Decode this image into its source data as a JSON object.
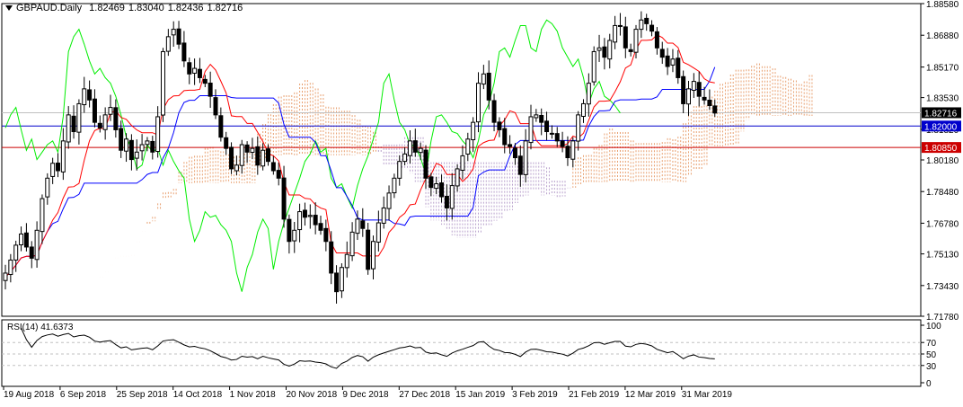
{
  "chart": {
    "symbol": "GBPAUD.",
    "timeframe": "Daily",
    "ohlc": [
      "1.82469",
      "1.83040",
      "1.82436",
      "1.82716"
    ]
  },
  "rsi_label": "RSI(14) 41.6373",
  "colors": {
    "candle": "#000000",
    "tenkan": "#ff0000",
    "kijun": "#0000ff",
    "chikou": "#00ee00",
    "cloud": "#e8a070",
    "cloud_alt": "#b8a0cc",
    "level_blue": "#0000cc",
    "level_red": "#cc0000"
  },
  "chart_data": [
    {
      "type": "candlestick",
      "title": "GBPAUD.,Daily",
      "ylim": [
        1.7178,
        1.8858
      ],
      "y_ticks": [
        "1.88580",
        "1.86880",
        "1.85170",
        "1.83530",
        "1.81820",
        "1.80180",
        "1.78480",
        "1.76780",
        "1.75130",
        "1.73430",
        "1.71780"
      ],
      "x_ticks": [
        "19 Aug 2018",
        "6 Sep 2018",
        "25 Sep 2018",
        "14 Oct 2018",
        "1 Nov 2018",
        "20 Nov 2018",
        "9 Dec 2018",
        "27 Dec 2018",
        "15 Jan 2019",
        "3 Feb 2019",
        "21 Feb 2019",
        "12 Mar 2019",
        "31 Mar 2019"
      ],
      "price_tags": [
        {
          "value": "1.82716",
          "style": "current"
        },
        {
          "value": "1.82000",
          "style": "blue"
        },
        {
          "value": "1.80850",
          "style": "red"
        }
      ],
      "closes": [
        1.741,
        1.748,
        1.756,
        1.762,
        1.755,
        1.749,
        1.764,
        1.781,
        1.792,
        1.8,
        1.796,
        1.812,
        1.826,
        1.817,
        1.832,
        1.84,
        1.834,
        1.822,
        1.819,
        1.826,
        1.83,
        1.818,
        1.807,
        1.813,
        1.802,
        1.806,
        1.81,
        1.812,
        1.806,
        1.825,
        1.86,
        1.868,
        1.872,
        1.864,
        1.855,
        1.848,
        1.851,
        1.846,
        1.843,
        1.836,
        1.826,
        1.814,
        1.808,
        1.797,
        1.799,
        1.81,
        1.806,
        1.808,
        1.799,
        1.807,
        1.801,
        1.796,
        1.792,
        1.77,
        1.758,
        1.764,
        1.774,
        1.771,
        1.772,
        1.767,
        1.764,
        1.758,
        1.741,
        1.731,
        1.744,
        1.751,
        1.763,
        1.77,
        1.765,
        1.743,
        1.758,
        1.768,
        1.776,
        1.784,
        1.792,
        1.801,
        1.805,
        1.812,
        1.806,
        1.808,
        1.792,
        1.787,
        1.789,
        1.782,
        1.776,
        1.788,
        1.797,
        1.804,
        1.813,
        1.822,
        1.843,
        1.848,
        1.834,
        1.822,
        1.818,
        1.81,
        1.809,
        1.803,
        1.794,
        1.812,
        1.825,
        1.826,
        1.822,
        1.817,
        1.816,
        1.812,
        1.809,
        1.803,
        1.812,
        1.826,
        1.832,
        1.843,
        1.86,
        1.862,
        1.857,
        1.866,
        1.874,
        1.874,
        1.862,
        1.86,
        1.872,
        1.877,
        1.875,
        1.871,
        1.862,
        1.857,
        1.852,
        1.856,
        1.846,
        1.832,
        1.84,
        1.844,
        1.836,
        1.834,
        1.831,
        1.827
      ],
      "rsi": {
        "name": "RSI(14)",
        "value": 41.6373,
        "levels": [
          70,
          50,
          30
        ],
        "ylim": [
          0,
          100
        ],
        "ticks": [
          "100",
          "70",
          "50",
          "30",
          "0"
        ]
      }
    }
  ]
}
